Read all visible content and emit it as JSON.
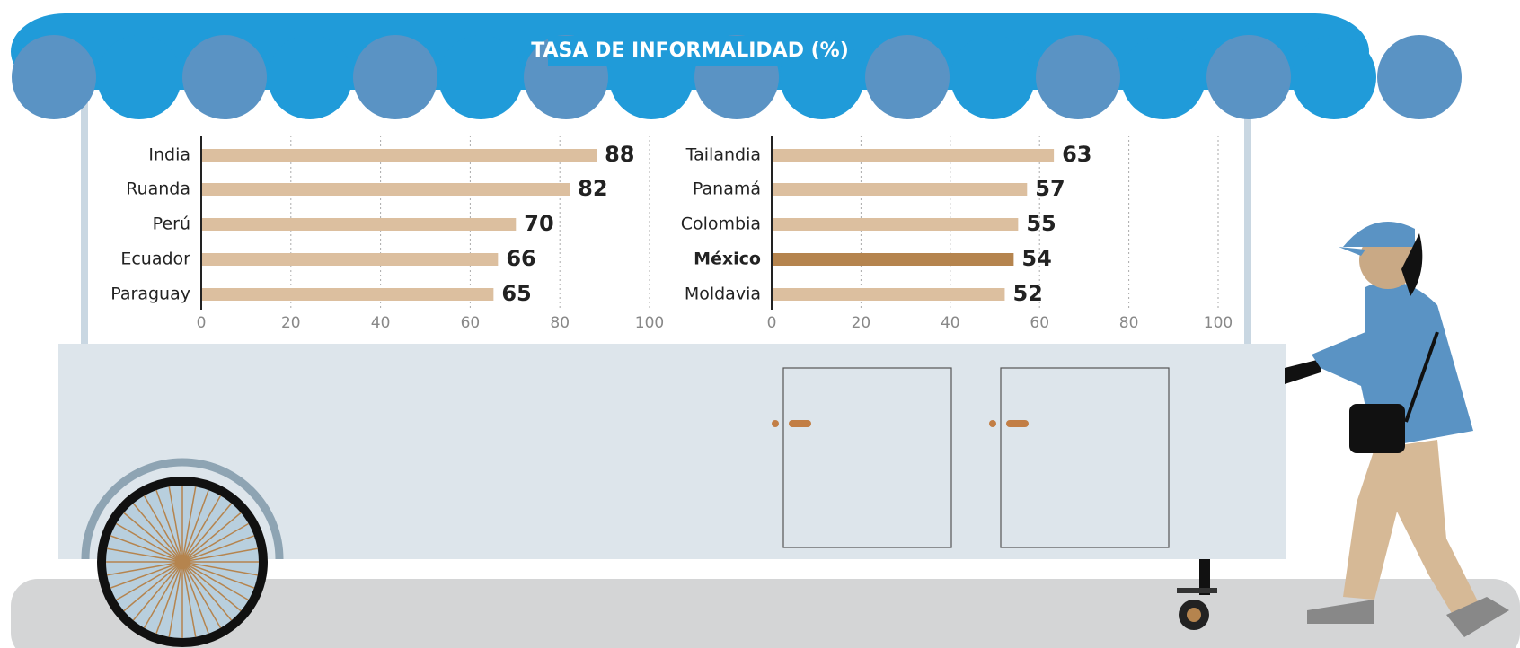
{
  "title": "TASA DE INFORMALIDAD (%)",
  "chart_data": [
    {
      "type": "bar",
      "orientation": "horizontal",
      "categories": [
        "India",
        "Ruanda",
        "Perú",
        "Ecuador",
        "Paraguay"
      ],
      "values": [
        88,
        82,
        70,
        66,
        65
      ],
      "color": "#dcbf9f",
      "colors": [
        "#dcbf9f",
        "#dcbf9f",
        "#dcbf9f",
        "#dcbf9f",
        "#dcbf9f"
      ],
      "xlim": [
        0,
        100
      ],
      "xticks": [
        0,
        20,
        40,
        60,
        80,
        100
      ],
      "grid": true
    },
    {
      "type": "bar",
      "orientation": "horizontal",
      "categories": [
        "Tailandia",
        "Panamá",
        "Colombia",
        "México",
        "Moldavia"
      ],
      "values": [
        63,
        57,
        55,
        54,
        52
      ],
      "color": "#dcbf9f",
      "colors": [
        "#dcbf9f",
        "#dcbf9f",
        "#dcbf9f",
        "#b5844e",
        "#dcbf9f"
      ],
      "xlim": [
        0,
        100
      ],
      "xticks": [
        0,
        20,
        40,
        60,
        80,
        100
      ],
      "grid": true
    }
  ]
}
